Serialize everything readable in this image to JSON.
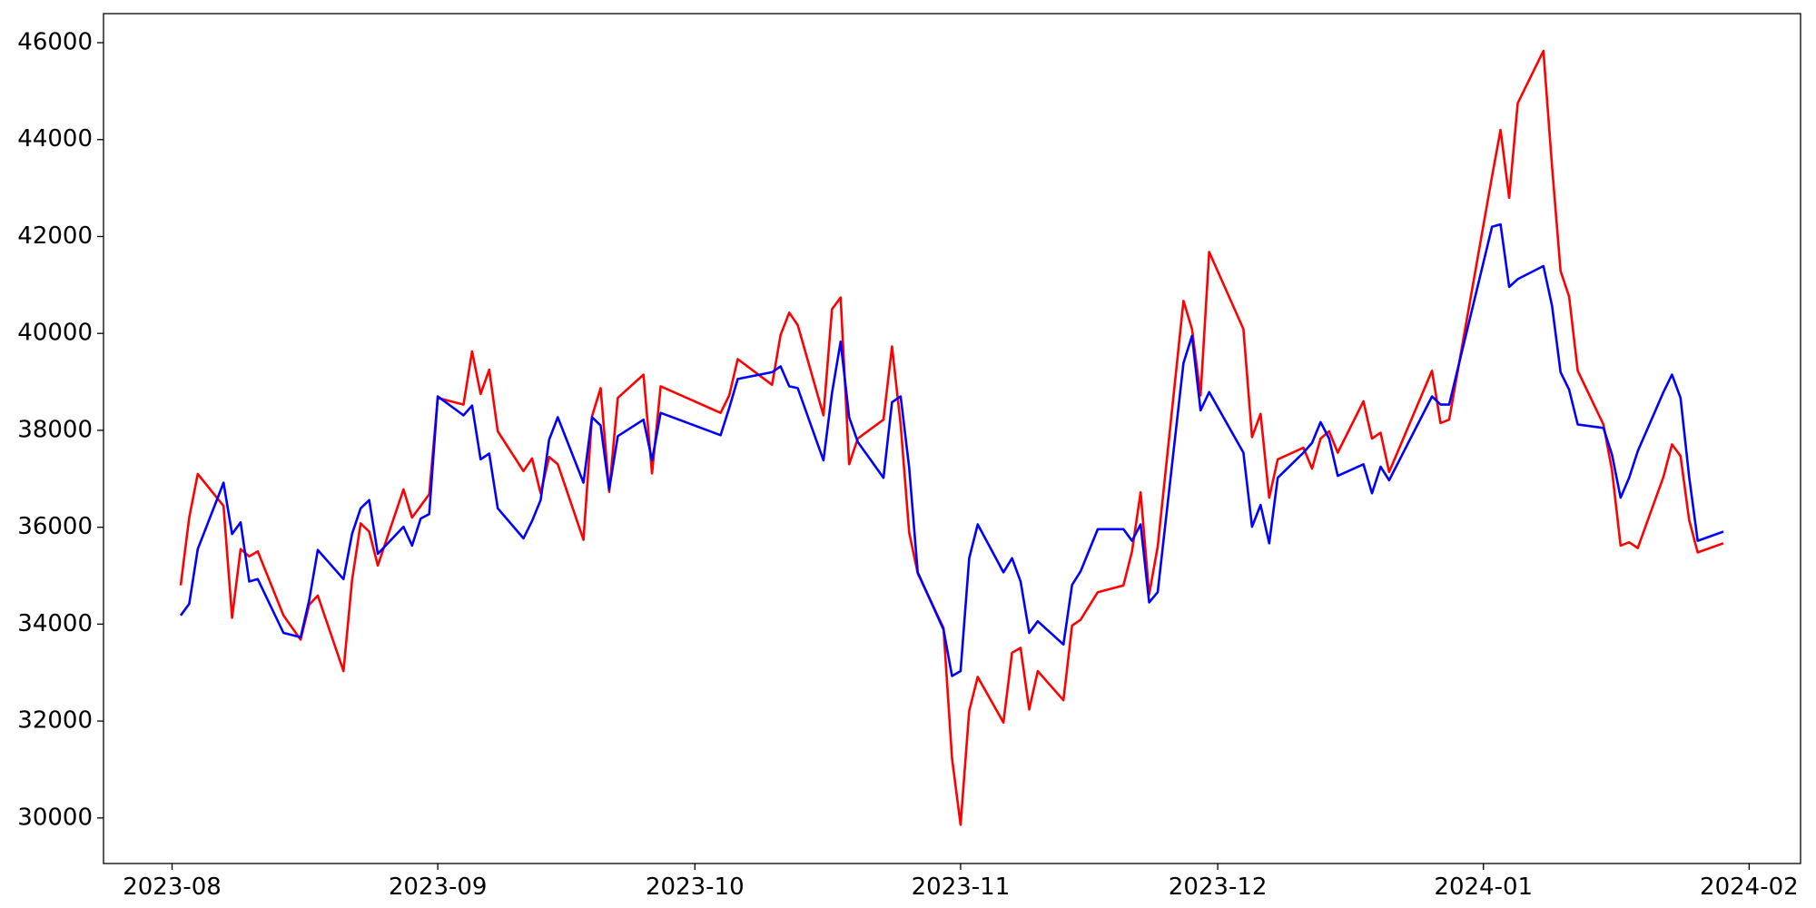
{
  "chart_data": {
    "type": "line",
    "x": [
      "2023-08-02",
      "2023-08-03",
      "2023-08-04",
      "2023-08-07",
      "2023-08-08",
      "2023-08-09",
      "2023-08-10",
      "2023-08-11",
      "2023-08-14",
      "2023-08-16",
      "2023-08-17",
      "2023-08-18",
      "2023-08-21",
      "2023-08-22",
      "2023-08-23",
      "2023-08-24",
      "2023-08-25",
      "2023-08-28",
      "2023-08-29",
      "2023-08-30",
      "2023-08-31",
      "2023-09-01",
      "2023-09-04",
      "2023-09-05",
      "2023-09-06",
      "2023-09-07",
      "2023-09-08",
      "2023-09-11",
      "2023-09-12",
      "2023-09-13",
      "2023-09-14",
      "2023-09-15",
      "2023-09-18",
      "2023-09-19",
      "2023-09-20",
      "2023-09-21",
      "2023-09-22",
      "2023-09-25",
      "2023-09-26",
      "2023-09-27",
      "2023-10-04",
      "2023-10-05",
      "2023-10-06",
      "2023-10-10",
      "2023-10-11",
      "2023-10-12",
      "2023-10-13",
      "2023-10-16",
      "2023-10-17",
      "2023-10-18",
      "2023-10-19",
      "2023-10-20",
      "2023-10-23",
      "2023-10-24",
      "2023-10-25",
      "2023-10-26",
      "2023-10-27",
      "2023-10-30",
      "2023-10-31",
      "2023-11-01",
      "2023-11-02",
      "2023-11-03",
      "2023-11-06",
      "2023-11-07",
      "2023-11-08",
      "2023-11-09",
      "2023-11-10",
      "2023-11-13",
      "2023-11-14",
      "2023-11-15",
      "2023-11-17",
      "2023-11-20",
      "2023-11-21",
      "2023-11-22",
      "2023-11-23",
      "2023-11-24",
      "2023-11-27",
      "2023-11-28",
      "2023-11-29",
      "2023-11-30",
      "2023-12-04",
      "2023-12-05",
      "2023-12-06",
      "2023-12-07",
      "2023-12-08",
      "2023-12-11",
      "2023-12-12",
      "2023-12-13",
      "2023-12-14",
      "2023-12-15",
      "2023-12-18",
      "2023-12-19",
      "2023-12-20",
      "2023-12-21",
      "2023-12-26",
      "2023-12-27",
      "2023-12-28",
      "2024-01-02",
      "2024-01-03",
      "2024-01-04",
      "2024-01-05",
      "2024-01-08",
      "2024-01-09",
      "2024-01-10",
      "2024-01-11",
      "2024-01-12",
      "2024-01-15",
      "2024-01-16",
      "2024-01-17",
      "2024-01-18",
      "2024-01-19",
      "2024-01-22",
      "2024-01-23",
      "2024-01-24",
      "2024-01-25",
      "2024-01-26",
      "2024-01-29"
    ],
    "series": [
      {
        "color": "#ff0000",
        "values": [
          34800,
          36200,
          37100,
          36440,
          34130,
          35550,
          35400,
          35500,
          34180,
          33680,
          34400,
          34590,
          33030,
          34900,
          36080,
          35910,
          35210,
          36780,
          36200,
          36440,
          36680,
          38670,
          38530,
          39630,
          38750,
          39250,
          37980,
          37160,
          37420,
          36700,
          37450,
          37300,
          35740,
          38290,
          38870,
          36730,
          38670,
          39150,
          37110,
          38910,
          38360,
          38720,
          39470,
          38940,
          39970,
          40430,
          40170,
          38310,
          40500,
          40740,
          37300,
          37830,
          38220,
          39730,
          38120,
          35890,
          35050,
          33920,
          31230,
          29860,
          32210,
          32910,
          31970,
          33410,
          33510,
          32240,
          33030,
          32430,
          33970,
          34090,
          34660,
          34800,
          35500,
          36720,
          34610,
          35600,
          40670,
          40090,
          38720,
          41680,
          40090,
          37860,
          38340,
          36610,
          37400,
          37640,
          37210,
          37830,
          37980,
          37540,
          38600,
          37830,
          37950,
          37140,
          39230,
          38150,
          38220,
          43240,
          44200,
          42800,
          44750,
          45830,
          43450,
          41290,
          40760,
          39230,
          38120,
          37180,
          35620,
          35690,
          35570,
          37040,
          37710,
          37470,
          36150,
          35480,
          35670
        ]
      },
      {
        "color": "#0000ff",
        "values": [
          34180,
          34420,
          35550,
          36920,
          35860,
          36100,
          34880,
          34930,
          33820,
          33730,
          34490,
          35530,
          34930,
          35860,
          36390,
          36560,
          35450,
          36010,
          35620,
          36180,
          36270,
          38700,
          38310,
          38510,
          37400,
          37520,
          36390,
          35770,
          36130,
          36560,
          37810,
          38270,
          36920,
          38270,
          38100,
          36780,
          37880,
          38220,
          37380,
          38360,
          37900,
          38460,
          39060,
          39200,
          39320,
          38910,
          38870,
          37380,
          38770,
          39830,
          38270,
          37760,
          37020,
          38580,
          38700,
          37230,
          35070,
          33890,
          32930,
          33030,
          35360,
          36060,
          35070,
          35360,
          34880,
          33820,
          34060,
          33580,
          34810,
          35090,
          35960,
          35960,
          35720,
          36060,
          34450,
          34660,
          39390,
          39950,
          38410,
          38790,
          37540,
          36010,
          36460,
          35670,
          37020,
          37540,
          37740,
          38170,
          37830,
          37060,
          37300,
          36700,
          37250,
          36970,
          38700,
          38530,
          38530,
          42200,
          42250,
          40960,
          41120,
          41390,
          40570,
          39200,
          38840,
          38120,
          38050,
          37500,
          36610,
          37020,
          37570,
          38790,
          39150,
          38670,
          37040,
          35720,
          35910
        ]
      }
    ],
    "xlim": [
      "2023-07-24",
      "2024-02-07"
    ],
    "xticks": [
      {
        "value": "2023-08-01",
        "label": "2023-08"
      },
      {
        "value": "2023-09-01",
        "label": "2023-09"
      },
      {
        "value": "2023-10-01",
        "label": "2023-10"
      },
      {
        "value": "2023-11-01",
        "label": "2023-11"
      },
      {
        "value": "2023-12-01",
        "label": "2023-12"
      },
      {
        "value": "2024-01-01",
        "label": "2024-01"
      },
      {
        "value": "2024-02-01",
        "label": "2024-02"
      }
    ],
    "ylim": [
      29060,
      46600
    ],
    "yticks": [
      30000,
      32000,
      34000,
      36000,
      38000,
      40000,
      42000,
      44000,
      46000
    ],
    "grid": false
  }
}
